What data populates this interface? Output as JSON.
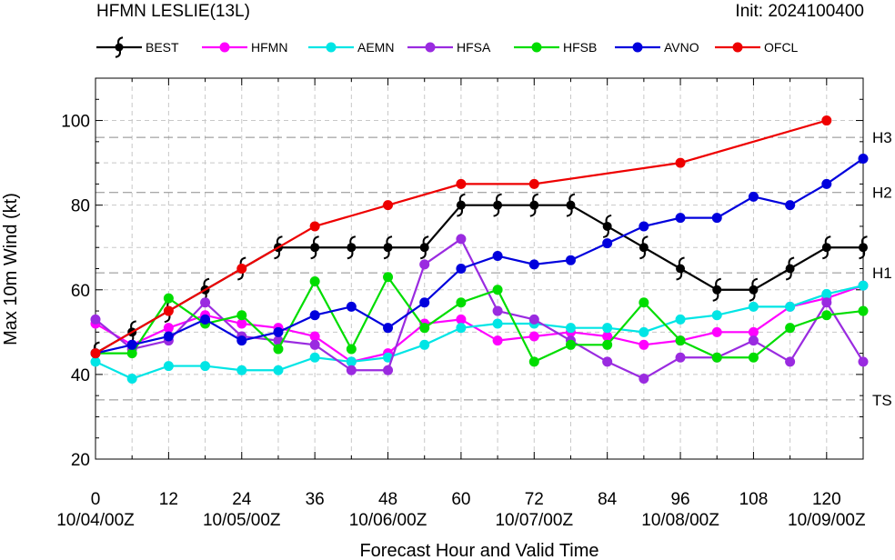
{
  "chart_data": {
    "type": "line",
    "title": "HFMN LESLIE(13L)",
    "init_label": "Init: 2024100400",
    "xlabel": "Forecast Hour and Valid Time",
    "ylabel": "Max 10m Wind (kt)",
    "xlim": [
      0,
      126
    ],
    "ylim": [
      20,
      110
    ],
    "x_ticks": [
      0,
      12,
      24,
      36,
      48,
      60,
      72,
      84,
      96,
      108,
      120
    ],
    "x_tick_labels": [
      "0",
      "12",
      "24",
      "36",
      "48",
      "60",
      "72",
      "84",
      "96",
      "108",
      "120"
    ],
    "date_labels": [
      {
        "hour": 0,
        "label": "10/04/00Z"
      },
      {
        "hour": 24,
        "label": "10/05/00Z"
      },
      {
        "hour": 48,
        "label": "10/06/00Z"
      },
      {
        "hour": 72,
        "label": "10/07/00Z"
      },
      {
        "hour": 96,
        "label": "10/08/00Z"
      },
      {
        "hour": 120,
        "label": "10/09/00Z"
      }
    ],
    "y_ticks": [
      20,
      40,
      60,
      80,
      100
    ],
    "grid": true,
    "legend_position": "top",
    "thresholds": [
      {
        "value": 34,
        "label": "TS"
      },
      {
        "value": 64,
        "label": "H1"
      },
      {
        "value": 83,
        "label": "H2"
      },
      {
        "value": 96,
        "label": "H3"
      }
    ],
    "series": [
      {
        "name": "BEST",
        "color": "#000000",
        "marker": "hurricane-symbol",
        "x": [
          0,
          6,
          12,
          18,
          24,
          30,
          36,
          42,
          48,
          54,
          60,
          66,
          72,
          78,
          84,
          90,
          96,
          102,
          108,
          114,
          120,
          126
        ],
        "values": [
          45,
          50,
          55,
          60,
          65,
          70,
          70,
          70,
          70,
          70,
          80,
          80,
          80,
          80,
          75,
          70,
          65,
          60,
          60,
          65,
          70,
          70
        ]
      },
      {
        "name": "HFMN",
        "color": "#ff00ff",
        "marker": "dot",
        "x": [
          0,
          6,
          12,
          18,
          24,
          30,
          36,
          42,
          48,
          54,
          60,
          66,
          72,
          78,
          84,
          90,
          96,
          102,
          108,
          114,
          120,
          126
        ],
        "values": [
          52,
          47,
          51,
          54,
          52,
          51,
          49,
          43,
          45,
          52,
          53,
          48,
          49,
          50,
          49,
          47,
          48,
          50,
          50,
          56,
          58,
          61
        ]
      },
      {
        "name": "AEMN",
        "color": "#00e5e5",
        "marker": "dot",
        "x": [
          0,
          6,
          12,
          18,
          24,
          30,
          36,
          42,
          48,
          54,
          60,
          66,
          72,
          78,
          84,
          90,
          96,
          102,
          108,
          114,
          120,
          126
        ],
        "values": [
          43,
          39,
          42,
          42,
          41,
          41,
          44,
          43,
          44,
          47,
          51,
          52,
          52,
          51,
          51,
          50,
          53,
          54,
          56,
          56,
          59,
          61
        ]
      },
      {
        "name": "HFSA",
        "color": "#9a2be0",
        "marker": "dot",
        "x": [
          0,
          6,
          12,
          18,
          24,
          30,
          36,
          42,
          48,
          54,
          60,
          66,
          72,
          78,
          84,
          90,
          96,
          102,
          108,
          114,
          120,
          126
        ],
        "values": [
          53,
          46,
          48,
          57,
          49,
          48,
          47,
          41,
          41,
          66,
          72,
          55,
          53,
          48,
          43,
          39,
          44,
          44,
          48,
          43,
          57,
          43
        ]
      },
      {
        "name": "HFSB",
        "color": "#00dd00",
        "marker": "dot",
        "x": [
          0,
          6,
          12,
          18,
          24,
          30,
          36,
          42,
          48,
          54,
          60,
          66,
          72,
          78,
          84,
          90,
          96,
          102,
          108,
          114,
          120,
          126
        ],
        "values": [
          45,
          45,
          58,
          52,
          54,
          46,
          62,
          46,
          63,
          51,
          57,
          60,
          43,
          47,
          47,
          57,
          48,
          44,
          44,
          51,
          54,
          55
        ]
      },
      {
        "name": "AVNO",
        "color": "#0000dd",
        "marker": "dot",
        "x": [
          0,
          6,
          12,
          18,
          24,
          30,
          36,
          42,
          48,
          54,
          60,
          66,
          72,
          78,
          84,
          90,
          96,
          102,
          108,
          114,
          120,
          126
        ],
        "values": [
          45,
          47,
          49,
          53,
          48,
          50,
          54,
          56,
          51,
          57,
          65,
          68,
          66,
          67,
          71,
          75,
          77,
          77,
          82,
          80,
          85,
          91
        ]
      },
      {
        "name": "OFCL",
        "color": "#ee0000",
        "marker": "dot",
        "x": [
          0,
          12,
          24,
          36,
          48,
          60,
          72,
          96,
          120
        ],
        "values": [
          45,
          55,
          65,
          75,
          80,
          85,
          85,
          90,
          100
        ]
      }
    ]
  }
}
